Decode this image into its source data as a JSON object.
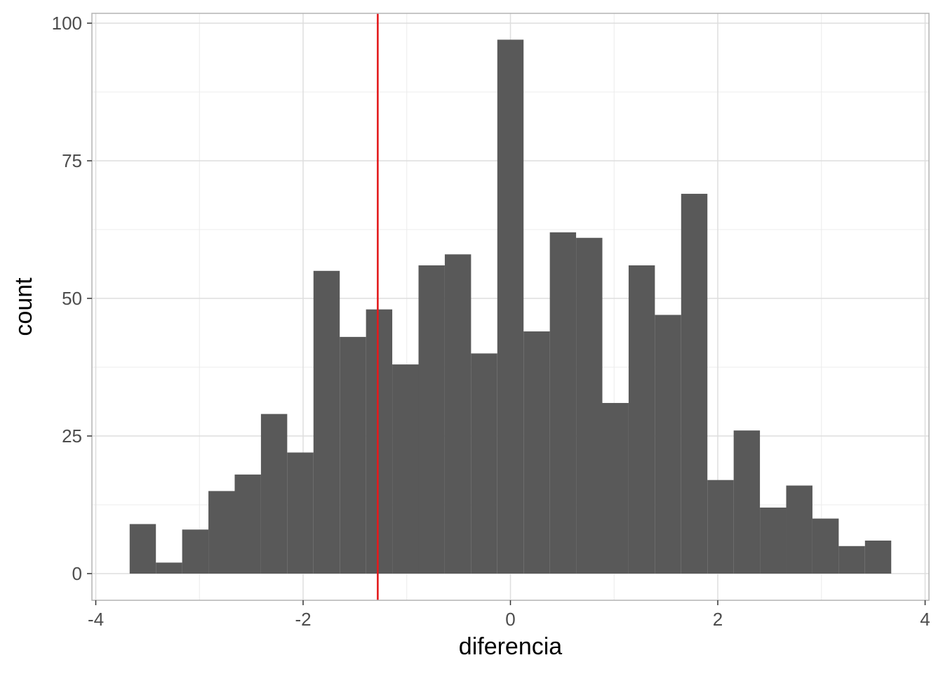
{
  "chart_data": {
    "type": "bar",
    "subtype": "histogram",
    "title": "",
    "xlabel": "diferencia",
    "ylabel": "count",
    "xlim": [
      -4,
      4
    ],
    "ylim": [
      0,
      100
    ],
    "x_ticks": [
      "-4",
      "-2",
      "0",
      "2",
      "4"
    ],
    "y_ticks": [
      "0",
      "25",
      "50",
      "75",
      "100"
    ],
    "x_tick_values": [
      -4,
      -2,
      0,
      2,
      4
    ],
    "y_tick_values": [
      0,
      25,
      50,
      75,
      100
    ],
    "bin_width": 0.2533,
    "bins": [
      {
        "center": -3.5466,
        "count": 9
      },
      {
        "center": -3.2933,
        "count": 2
      },
      {
        "center": -3.04,
        "count": 8
      },
      {
        "center": -2.7866,
        "count": 15
      },
      {
        "center": -2.5333,
        "count": 18
      },
      {
        "center": -2.28,
        "count": 29
      },
      {
        "center": -2.0266,
        "count": 22
      },
      {
        "center": -1.7733,
        "count": 55
      },
      {
        "center": -1.52,
        "count": 43
      },
      {
        "center": -1.2666,
        "count": 48
      },
      {
        "center": -1.0133,
        "count": 38
      },
      {
        "center": -0.76,
        "count": 56
      },
      {
        "center": -0.5066,
        "count": 58
      },
      {
        "center": -0.2533,
        "count": 40
      },
      {
        "center": 0.0,
        "count": 97
      },
      {
        "center": 0.2533,
        "count": 44
      },
      {
        "center": 0.5066,
        "count": 62
      },
      {
        "center": 0.76,
        "count": 61
      },
      {
        "center": 1.0133,
        "count": 31
      },
      {
        "center": 1.2666,
        "count": 56
      },
      {
        "center": 1.52,
        "count": 47
      },
      {
        "center": 1.7733,
        "count": 69
      },
      {
        "center": 2.0266,
        "count": 17
      },
      {
        "center": 2.28,
        "count": 26
      },
      {
        "center": 2.5333,
        "count": 12
      },
      {
        "center": 2.7866,
        "count": 16
      },
      {
        "center": 3.04,
        "count": 10
      },
      {
        "center": 3.2933,
        "count": 5
      },
      {
        "center": 3.5466,
        "count": 6
      }
    ],
    "vline": {
      "x": -1.28,
      "color": "#e31a1c"
    },
    "bar_color": "#595959",
    "grid": true
  }
}
